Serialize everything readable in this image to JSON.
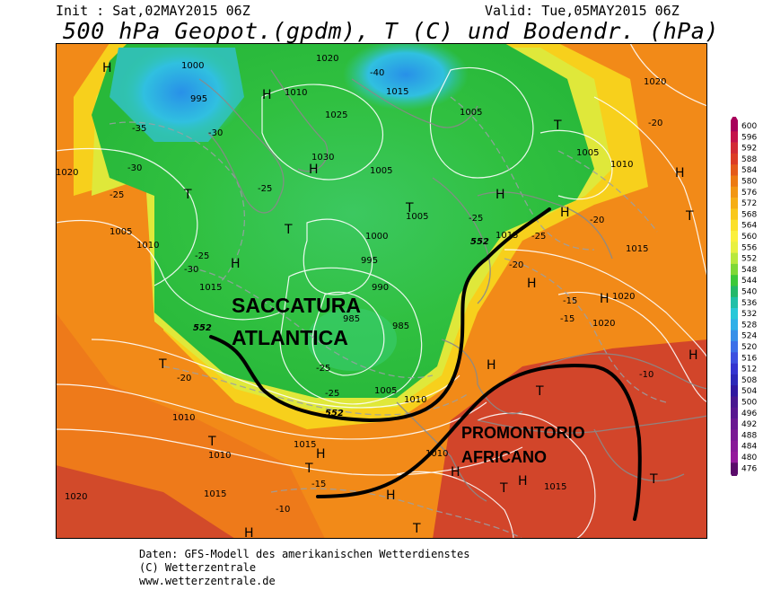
{
  "header": {
    "init": "Init : Sat,02MAY2015 06Z",
    "valid": "Valid: Tue,05MAY2015 06Z",
    "title": "500 hPa Geopot.(gpdm), T (C) und Bodendr. (hPa)"
  },
  "annotations": {
    "trough": [
      "SACCATURA",
      "ATLANTICA"
    ],
    "ridge": [
      "PROMONTORIO",
      "AFRICANO"
    ],
    "contour_552": "552"
  },
  "legend": {
    "values": [
      "600",
      "596",
      "592",
      "588",
      "584",
      "580",
      "576",
      "572",
      "568",
      "564",
      "560",
      "556",
      "552",
      "548",
      "544",
      "540",
      "536",
      "532",
      "528",
      "524",
      "520",
      "516",
      "512",
      "508",
      "504",
      "500",
      "496",
      "492",
      "488",
      "484",
      "480",
      "476"
    ],
    "colors": [
      "#a8005a",
      "#c4124a",
      "#d22a35",
      "#dc3c25",
      "#e45a1a",
      "#ec7a12",
      "#f29612",
      "#f6ae14",
      "#f9c81c",
      "#fbe02a",
      "#fbf03c",
      "#e8f040",
      "#b8e83c",
      "#7ed836",
      "#3cc83a",
      "#24b86a",
      "#20c0a8",
      "#28c8d8",
      "#30b0e8",
      "#3890e8",
      "#3c70e8",
      "#3c50e0",
      "#3434d0",
      "#2c28b8",
      "#3018a0",
      "#481890",
      "#581890",
      "#6a1892",
      "#7a1a94",
      "#881a98",
      "#94189c",
      "#5a0a6a"
    ]
  },
  "pressure_labels": [
    "1010",
    "1005",
    "1020",
    "1000",
    "995",
    "1015",
    "1025",
    "1030",
    "985",
    "990",
    "1005",
    "1010"
  ],
  "temp_labels": [
    "-40",
    "-35",
    "-30",
    "-25",
    "-20",
    "-15",
    "-10"
  ],
  "symbols": {
    "high": "H",
    "low": "T"
  },
  "footer": [
    "Daten: GFS-Modell des amerikanischen Wetterdienstes",
    "(C) Wetterzentrale",
    "www.wetterzentrale.de"
  ]
}
